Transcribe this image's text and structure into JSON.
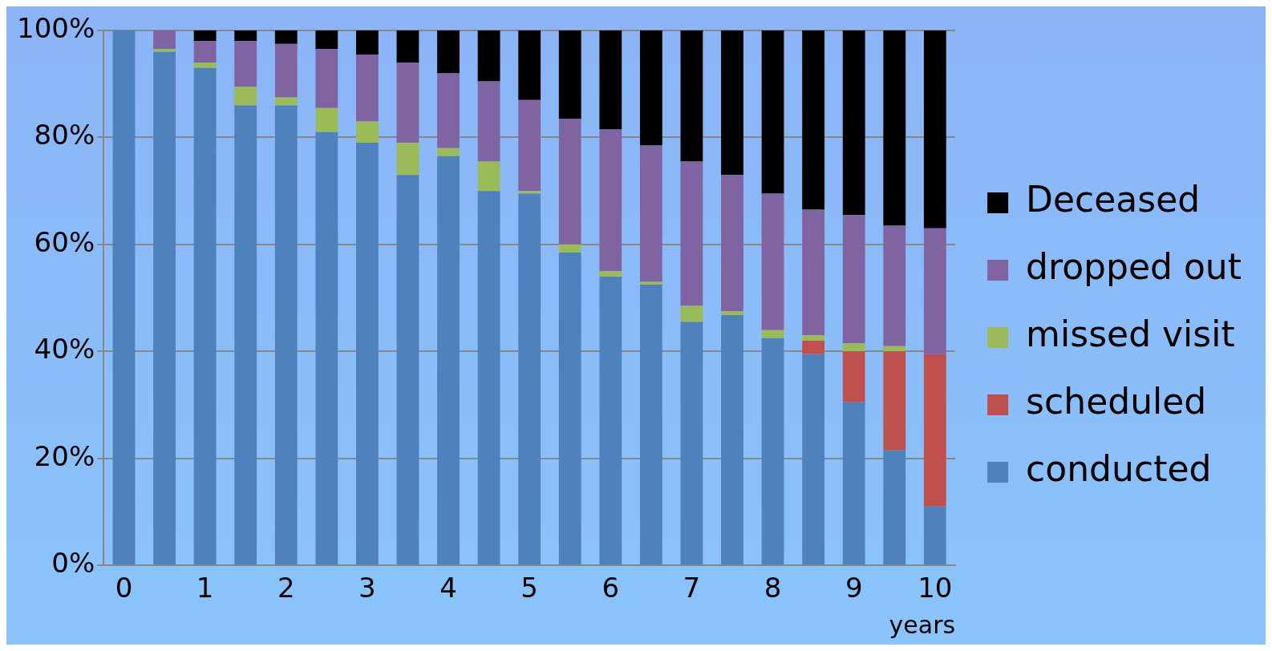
{
  "chart_data": {
    "type": "bar",
    "stacked": true,
    "xlabel": "years",
    "categories": [
      "0",
      null,
      "1",
      null,
      "2",
      null,
      "3",
      null,
      "4",
      null,
      "5",
      null,
      "6",
      null,
      "7",
      null,
      "8",
      null,
      "9",
      null,
      "10"
    ],
    "series": [
      {
        "name": "conducted",
        "color": "#4f81bd",
        "values": [
          100,
          96,
          93,
          86,
          86,
          81,
          79,
          73,
          76.5,
          70,
          69.5,
          58.5,
          54,
          52.5,
          45.5,
          46.8,
          42.5,
          39.5,
          30.5,
          21.5,
          11
        ]
      },
      {
        "name": "scheduled",
        "color": "#c0504d",
        "values": [
          0,
          0,
          0,
          0,
          0,
          0,
          0,
          0,
          0,
          0,
          0,
          0,
          0,
          0,
          0,
          0,
          0,
          2.5,
          9.5,
          18.5,
          28.5
        ]
      },
      {
        "name": "missed visit",
        "color": "#9bbb59",
        "values": [
          0,
          0.5,
          1,
          3.5,
          1.5,
          4.5,
          4,
          6,
          1.5,
          5.5,
          0.5,
          1.5,
          1,
          0.5,
          3,
          0.7,
          1.5,
          1,
          1.5,
          1,
          0
        ]
      },
      {
        "name": "dropped out",
        "color": "#8064a2",
        "values": [
          0,
          3.5,
          4,
          8.5,
          10,
          11,
          12.5,
          15,
          14,
          15,
          17,
          23.5,
          26.5,
          25.5,
          27,
          25.5,
          25.5,
          23.5,
          24,
          22.5,
          23.5
        ]
      },
      {
        "name": "Deceased",
        "color": "#000000",
        "values": [
          0,
          0,
          2,
          2,
          2.5,
          3.5,
          4.5,
          6,
          8,
          9.5,
          13,
          16.5,
          18.5,
          21.5,
          24.5,
          27,
          30.5,
          33.5,
          34.5,
          36.5,
          37
        ]
      }
    ],
    "ylim": [
      0,
      100
    ],
    "yticks": [
      {
        "value": 0,
        "label": "0%"
      },
      {
        "value": 20,
        "label": "20%"
      },
      {
        "value": 40,
        "label": "40%"
      },
      {
        "value": 60,
        "label": "60%"
      },
      {
        "value": 80,
        "label": "80%"
      },
      {
        "value": 100,
        "label": "100%"
      }
    ],
    "grid": "y",
    "legend": "right"
  }
}
